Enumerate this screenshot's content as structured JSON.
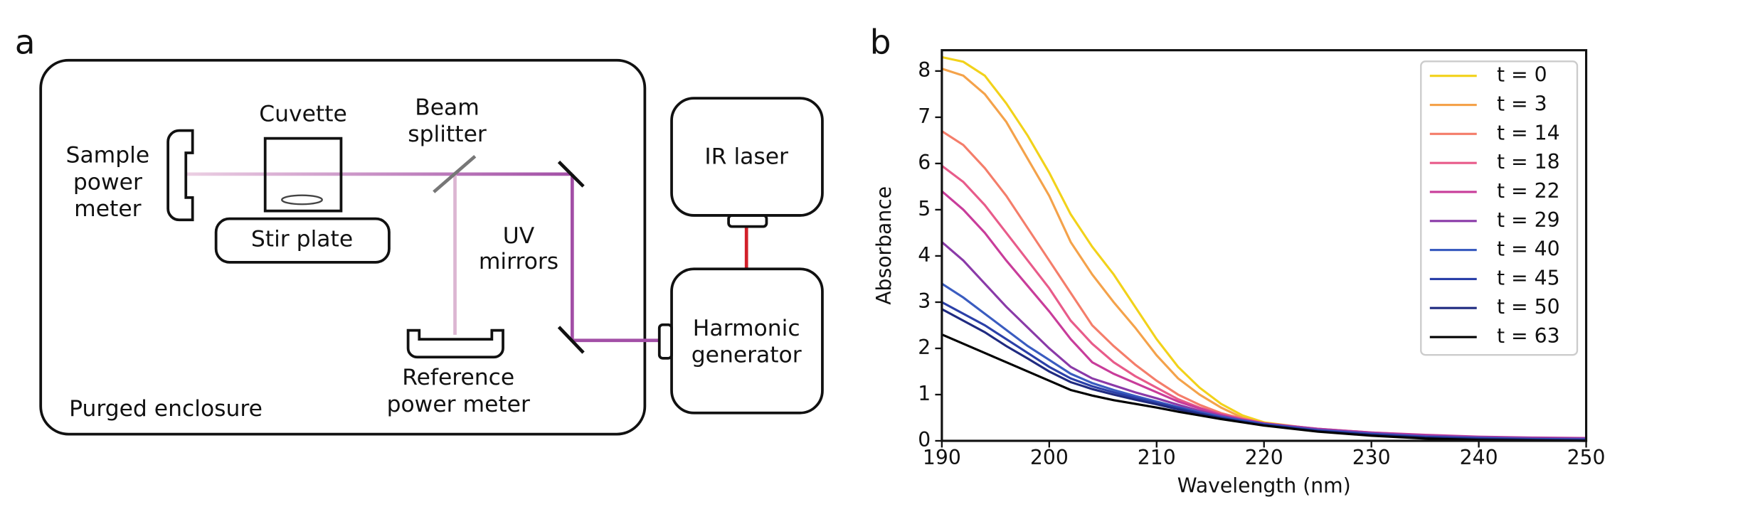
{
  "diagram": {
    "panel_label": "a",
    "cuvette": [
      "Cuvette"
    ],
    "beam_splitter": [
      "Beam",
      "splitter"
    ],
    "sample_power_meter": [
      "Sample",
      "power",
      "meter"
    ],
    "stir_plate": [
      "Stir plate"
    ],
    "uv_mirrors": [
      "UV",
      "mirrors"
    ],
    "ir_laser": [
      "IR laser"
    ],
    "harmonic_generator": [
      "Harmonic",
      "generator"
    ],
    "reference_power_meter": [
      "Reference",
      "power meter"
    ],
    "purged_enclosure": [
      "Purged enclosure"
    ]
  },
  "chart_data": {
    "type": "line",
    "panel_label": "b",
    "x_label": "Wavelength (nm)",
    "y_label": "Absorbance",
    "x": [
      190,
      192,
      194,
      196,
      198,
      200,
      202,
      204,
      206,
      208,
      210,
      212,
      214,
      216,
      218,
      220,
      225,
      230,
      235,
      240,
      245,
      250
    ],
    "xlim": [
      190,
      250
    ],
    "ylim": [
      0,
      8.45
    ],
    "xticks": [
      190,
      200,
      210,
      220,
      230,
      240,
      250
    ],
    "yticks": [
      0,
      1,
      2,
      3,
      4,
      5,
      6,
      7,
      8
    ],
    "legend": "upper right",
    "series": [
      {
        "name": "t = 0",
        "color": "#f2d21a",
        "values": [
          8.3,
          8.2,
          7.9,
          7.3,
          6.6,
          5.8,
          4.9,
          4.2,
          3.6,
          2.9,
          2.2,
          1.6,
          1.15,
          0.8,
          0.55,
          0.4,
          0.25,
          0.15,
          0.08,
          0.05,
          0.03,
          0.02
        ]
      },
      {
        "name": "t = 3",
        "color": "#f4a24a",
        "values": [
          8.05,
          7.9,
          7.5,
          6.9,
          6.1,
          5.3,
          4.3,
          3.6,
          3.0,
          2.45,
          1.85,
          1.35,
          1.0,
          0.72,
          0.5,
          0.38,
          0.24,
          0.15,
          0.09,
          0.05,
          0.04,
          0.03
        ]
      },
      {
        "name": "t = 14",
        "color": "#f47d6a",
        "values": [
          6.7,
          6.4,
          5.9,
          5.3,
          4.6,
          3.9,
          3.2,
          2.5,
          2.05,
          1.65,
          1.3,
          1.0,
          0.78,
          0.6,
          0.48,
          0.38,
          0.25,
          0.17,
          0.11,
          0.07,
          0.05,
          0.04
        ]
      },
      {
        "name": "t = 18",
        "color": "#e85b8a",
        "values": [
          5.95,
          5.6,
          5.1,
          4.5,
          3.9,
          3.3,
          2.6,
          2.1,
          1.7,
          1.4,
          1.15,
          0.9,
          0.72,
          0.58,
          0.47,
          0.38,
          0.26,
          0.18,
          0.12,
          0.08,
          0.06,
          0.05
        ]
      },
      {
        "name": "t = 22",
        "color": "#c83c9a",
        "values": [
          5.4,
          5.0,
          4.5,
          3.9,
          3.35,
          2.8,
          2.2,
          1.7,
          1.45,
          1.25,
          1.05,
          0.85,
          0.7,
          0.56,
          0.46,
          0.38,
          0.26,
          0.18,
          0.13,
          0.09,
          0.07,
          0.06
        ]
      },
      {
        "name": "t = 29",
        "color": "#8a3aa8",
        "values": [
          4.3,
          3.9,
          3.4,
          2.9,
          2.45,
          2.0,
          1.6,
          1.35,
          1.2,
          1.05,
          0.92,
          0.78,
          0.65,
          0.54,
          0.45,
          0.37,
          0.25,
          0.17,
          0.11,
          0.08,
          0.06,
          0.05
        ]
      },
      {
        "name": "t = 40",
        "color": "#3a5cc0",
        "values": [
          3.4,
          3.1,
          2.75,
          2.4,
          2.05,
          1.75,
          1.45,
          1.25,
          1.1,
          0.97,
          0.85,
          0.73,
          0.62,
          0.52,
          0.44,
          0.36,
          0.23,
          0.15,
          0.09,
          0.06,
          0.04,
          0.03
        ]
      },
      {
        "name": "t = 45",
        "color": "#2a3fa8",
        "values": [
          3.0,
          2.75,
          2.5,
          2.2,
          1.9,
          1.6,
          1.35,
          1.18,
          1.05,
          0.93,
          0.82,
          0.71,
          0.6,
          0.5,
          0.42,
          0.35,
          0.22,
          0.14,
          0.08,
          0.05,
          0.03,
          0.02
        ]
      },
      {
        "name": "t = 50",
        "color": "#1f2a80",
        "values": [
          2.85,
          2.6,
          2.35,
          2.05,
          1.78,
          1.5,
          1.27,
          1.12,
          1.0,
          0.89,
          0.79,
          0.68,
          0.58,
          0.49,
          0.41,
          0.34,
          0.21,
          0.13,
          0.07,
          0.04,
          0.02,
          0.01
        ]
      },
      {
        "name": "t = 63",
        "color": "#000000",
        "values": [
          2.3,
          2.1,
          1.9,
          1.7,
          1.5,
          1.3,
          1.1,
          0.98,
          0.88,
          0.8,
          0.72,
          0.63,
          0.55,
          0.47,
          0.4,
          0.33,
          0.2,
          0.11,
          0.05,
          0.02,
          0.01,
          0.0
        ]
      }
    ]
  }
}
